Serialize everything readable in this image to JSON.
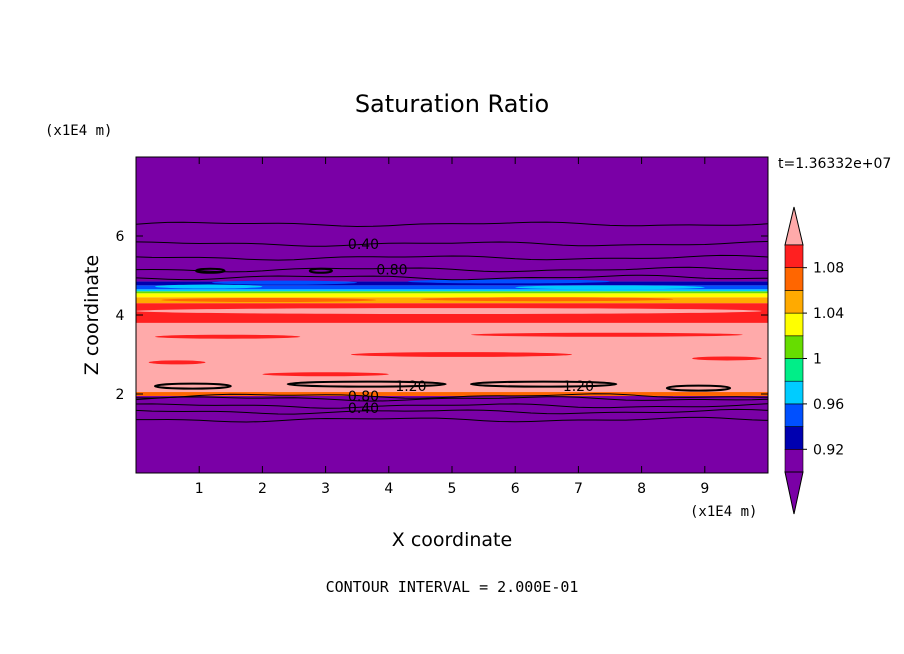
{
  "chart_data": {
    "type": "contour",
    "title": "Saturation Ratio",
    "xlabel": "X coordinate",
    "ylabel": "Z coordinate",
    "x_unit": "(x1E4 m)",
    "y_unit": "(x1E4 m)",
    "xlim": [
      0,
      10
    ],
    "ylim": [
      0,
      8
    ],
    "x_ticks": [
      "1",
      "2",
      "3",
      "4",
      "5",
      "6",
      "7",
      "8",
      "9"
    ],
    "y_ticks": [
      "2",
      "4",
      "6"
    ],
    "time_label": "t=1.36332e+07",
    "footer": "CONTOUR INTERVAL = 2.000E-01",
    "colorbar": {
      "labels": [
        "0.92",
        "0.96",
        "1",
        "1.04",
        "1.08"
      ],
      "colors": {
        "below_arrow": "#7a00a6",
        "levels": [
          "#7a00a6",
          "#0000b0",
          "#0050ff",
          "#00ccff",
          "#00ee88",
          "#66dd00",
          "#ffff00",
          "#ffaa00",
          "#ff6600",
          "#ff2020"
        ],
        "above_arrow": "#ffaaaa"
      }
    },
    "contour_labels": [
      {
        "text": "0.40",
        "x": 3.6,
        "z": 5.8
      },
      {
        "text": "0.80",
        "x": 4.05,
        "z": 5.15
      },
      {
        "text": "1.20",
        "x": 4.35,
        "z": 2.2
      },
      {
        "text": "1.20",
        "x": 7.0,
        "z": 2.2
      },
      {
        "text": "0.80",
        "x": 3.6,
        "z": 1.95
      },
      {
        "text": "0.40",
        "x": 3.6,
        "z": 1.65
      }
    ],
    "fill_bands": [
      {
        "z0": 0.0,
        "z1": 1.95,
        "color": "#7a00a6"
      },
      {
        "z0": 1.95,
        "z1": 2.05,
        "color": "#ff6600"
      },
      {
        "z0": 2.05,
        "z1": 3.8,
        "color": "#ffaaaa"
      },
      {
        "z0": 3.8,
        "z1": 4.3,
        "color": "#ff2020"
      },
      {
        "z0": 4.3,
        "z1": 4.45,
        "color": "#ffaa00"
      },
      {
        "z0": 4.45,
        "z1": 4.55,
        "color": "#ffff00"
      },
      {
        "z0": 4.55,
        "z1": 4.6,
        "color": "#66dd00"
      },
      {
        "z0": 4.6,
        "z1": 4.65,
        "color": "#00ccff"
      },
      {
        "z0": 4.65,
        "z1": 4.75,
        "color": "#0050ff"
      },
      {
        "z0": 4.75,
        "z1": 4.85,
        "color": "#0000b0"
      },
      {
        "z0": 4.85,
        "z1": 8.0,
        "color": "#7a00a6"
      }
    ],
    "contour_lines_z": [
      6.3,
      5.8,
      5.45,
      5.15,
      4.95,
      1.95,
      1.88,
      1.7,
      1.55,
      1.35
    ]
  }
}
